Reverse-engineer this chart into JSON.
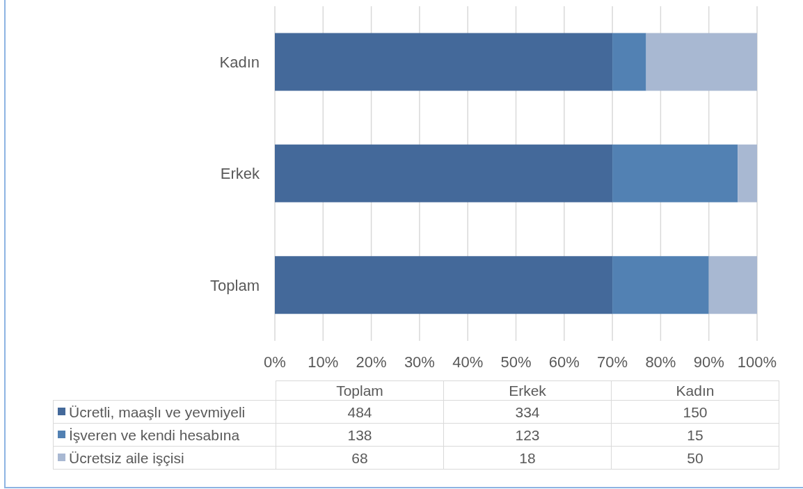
{
  "chart_data": [
    {
      "type": "bar",
      "orientation": "horizontal",
      "stacked": true,
      "categories": [
        "Kadın",
        "Erkek",
        "Toplam"
      ],
      "series": [
        {
          "color": "#44699a",
          "values": [
            70,
            70,
            70
          ]
        },
        {
          "color": "#5281b3",
          "values": [
            7,
            26,
            20
          ]
        },
        {
          "color": "#a8b8d2",
          "values": [
            23,
            4,
            10
          ]
        }
      ],
      "xlim": [
        0,
        100
      ],
      "xticks": [
        {
          "value": 0,
          "label": "0%"
        },
        {
          "value": 10,
          "label": "10%"
        },
        {
          "value": 20,
          "label": "20%"
        },
        {
          "value": 30,
          "label": "30%"
        },
        {
          "value": 40,
          "label": "40%"
        },
        {
          "value": 50,
          "label": "50%"
        },
        {
          "value": 60,
          "label": "60%"
        },
        {
          "value": 70,
          "label": "70%"
        },
        {
          "value": 80,
          "label": "80%"
        },
        {
          "value": 90,
          "label": "90%"
        },
        {
          "value": 100,
          "label": "100%"
        }
      ],
      "grid": "x"
    },
    {
      "type": "other",
      "categories": [
        "Toplam",
        "Erkek",
        "Kadın"
      ],
      "series": [
        {
          "name": "Ücretli, maaşlı ve yevmiyeli",
          "color": "#44699a",
          "values": [
            484,
            334,
            150
          ]
        },
        {
          "name": "İşveren ve kendi hesabına",
          "color": "#5281b3",
          "values": [
            138,
            123,
            15
          ]
        },
        {
          "name": "Ücretsiz aile işçisi",
          "color": "#a8b8d2",
          "values": [
            68,
            18,
            50
          ]
        }
      ],
      "data_labels": true,
      "legend": "left"
    }
  ]
}
